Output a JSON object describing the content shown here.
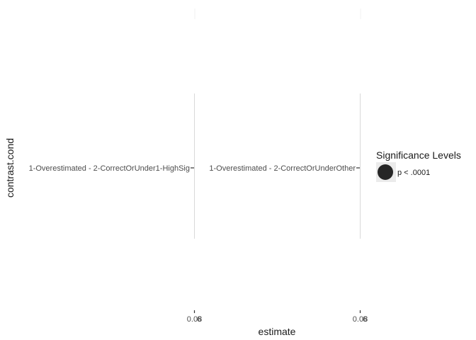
{
  "chart_data": {
    "type": "dot",
    "xlabel": "estimate",
    "ylabel": "contrast.cond",
    "panels": [
      {
        "category": "1-Overestimated - 2-CorrectOrUnder1-HighSig",
        "x_tick_label": "0.08",
        "x_tick_label_overlap": "6"
      },
      {
        "category": "1-Overestimated - 2-CorrectOrUnderOther",
        "x_tick_label": "0.08",
        "x_tick_label_overlap": "6"
      }
    ],
    "points": [
      {
        "panel": 0,
        "significance": "p < .0001"
      },
      {
        "panel": 1,
        "significance": "p < .0001"
      }
    ],
    "legend": {
      "title": "Significance Levels",
      "entries": [
        {
          "label": "p < .0001",
          "color": "#262626"
        }
      ]
    },
    "colors": {
      "point": "#262626",
      "legend_key_bg": "#ebebeb",
      "panel_line": "#d9d9d9",
      "faint_line": "#f2f2f2",
      "tick": "#333333"
    }
  }
}
